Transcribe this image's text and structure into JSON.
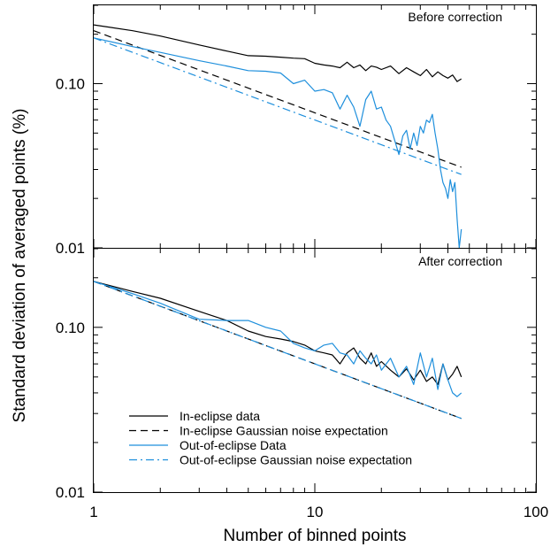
{
  "figure": {
    "xlabel": "Number of binned points",
    "ylabel": "Standard deviation of averaged points (%)"
  },
  "colors": {
    "black": "#000000",
    "blue": "#1e8fdc"
  },
  "chart_data": [
    {
      "type": "line",
      "title": "Before correction",
      "xscale": "log",
      "yscale": "log",
      "xlim": [
        1,
        100
      ],
      "ylim": [
        0.01,
        0.3
      ],
      "xticks": [
        1,
        10,
        100
      ],
      "xtick_labels": [
        "1",
        "10",
        "100"
      ],
      "yticks": [
        0.01,
        0.1
      ],
      "ytick_labels": [
        "0.01",
        "0.10"
      ],
      "series": [
        {
          "name": "In-eclipse data",
          "color": "#000000",
          "dash": "solid",
          "x": [
            1,
            1.5,
            2,
            3,
            4,
            5,
            6,
            7,
            8,
            9,
            10,
            11,
            12,
            13,
            14,
            15,
            16,
            17,
            18,
            19,
            20,
            22,
            24,
            26,
            28,
            30,
            32,
            34,
            36,
            38,
            40,
            42,
            44,
            46
          ],
          "y": [
            0.228,
            0.21,
            0.195,
            0.172,
            0.158,
            0.148,
            0.147,
            0.145,
            0.143,
            0.142,
            0.133,
            0.13,
            0.128,
            0.125,
            0.135,
            0.125,
            0.13,
            0.12,
            0.128,
            0.126,
            0.122,
            0.128,
            0.115,
            0.125,
            0.118,
            0.112,
            0.122,
            0.11,
            0.118,
            0.112,
            0.108,
            0.113,
            0.103,
            0.107
          ]
        },
        {
          "name": "In-eclipse Gaussian noise expectation",
          "color": "#000000",
          "dash": "dashed",
          "x": [
            1,
            46
          ],
          "y": [
            0.21,
            0.031
          ]
        },
        {
          "name": "Out-of-eclipse Data",
          "color": "#1e8fdc",
          "dash": "solid",
          "x": [
            1,
            1.5,
            2,
            3,
            4,
            5,
            6,
            7,
            8,
            9,
            10,
            11,
            12,
            13,
            14,
            15,
            16,
            17,
            18,
            19,
            20,
            21,
            22,
            23,
            24,
            25,
            26,
            27,
            28,
            29,
            30,
            31,
            32,
            33,
            34,
            35,
            36,
            37,
            38,
            39,
            40,
            41,
            42,
            43,
            44,
            45,
            46
          ],
          "y": [
            0.19,
            0.168,
            0.155,
            0.138,
            0.128,
            0.12,
            0.119,
            0.116,
            0.1,
            0.105,
            0.09,
            0.092,
            0.088,
            0.07,
            0.085,
            0.072,
            0.055,
            0.08,
            0.09,
            0.07,
            0.072,
            0.06,
            0.055,
            0.045,
            0.037,
            0.048,
            0.052,
            0.04,
            0.05,
            0.042,
            0.055,
            0.05,
            0.06,
            0.058,
            0.065,
            0.05,
            0.04,
            0.03,
            0.025,
            0.023,
            0.02,
            0.026,
            0.022,
            0.025,
            0.015,
            0.01,
            0.013
          ]
        },
        {
          "name": "Out-of-eclipse Gaussian noise expectation",
          "color": "#1e8fdc",
          "dash": "dashdot",
          "x": [
            1,
            46
          ],
          "y": [
            0.19,
            0.028
          ]
        }
      ]
    },
    {
      "type": "line",
      "title": "After correction",
      "xscale": "log",
      "yscale": "log",
      "xlim": [
        1,
        100
      ],
      "ylim": [
        0.01,
        0.3
      ],
      "xticks": [
        1,
        10,
        100
      ],
      "xtick_labels": [
        "1",
        "10",
        "100"
      ],
      "yticks": [
        0.01,
        0.1
      ],
      "ytick_labels": [
        "0.01",
        "0.10"
      ],
      "legend": {
        "placement": "bottom-left"
      },
      "series": [
        {
          "name": "In-eclipse data",
          "color": "#000000",
          "dash": "solid",
          "x": [
            1,
            1.5,
            2,
            3,
            4,
            5,
            6,
            7,
            8,
            9,
            10,
            11,
            12,
            13,
            14,
            15,
            16,
            17,
            18,
            19,
            20,
            22,
            24,
            26,
            28,
            30,
            32,
            34,
            36,
            38,
            40,
            42,
            44,
            46
          ],
          "y": [
            0.19,
            0.165,
            0.15,
            0.125,
            0.11,
            0.095,
            0.088,
            0.085,
            0.082,
            0.078,
            0.072,
            0.07,
            0.068,
            0.06,
            0.07,
            0.075,
            0.065,
            0.06,
            0.07,
            0.058,
            0.062,
            0.055,
            0.05,
            0.056,
            0.048,
            0.055,
            0.047,
            0.05,
            0.045,
            0.06,
            0.048,
            0.052,
            0.058,
            0.05
          ]
        },
        {
          "name": "In-eclipse Gaussian noise expectation",
          "color": "#000000",
          "dash": "dashed",
          "x": [
            1,
            46
          ],
          "y": [
            0.19,
            0.028
          ]
        },
        {
          "name": "Out-of-eclipse Data",
          "color": "#1e8fdc",
          "dash": "solid",
          "x": [
            1,
            1.5,
            2,
            3,
            4,
            5,
            6,
            7,
            8,
            9,
            10,
            11,
            12,
            13,
            14,
            15,
            16,
            17,
            18,
            19,
            20,
            22,
            24,
            26,
            28,
            30,
            32,
            34,
            36,
            38,
            40,
            42,
            44,
            46
          ],
          "y": [
            0.19,
            0.16,
            0.14,
            0.112,
            0.11,
            0.11,
            0.1,
            0.095,
            0.08,
            0.075,
            0.072,
            0.078,
            0.08,
            0.07,
            0.068,
            0.06,
            0.072,
            0.065,
            0.06,
            0.068,
            0.055,
            0.065,
            0.05,
            0.058,
            0.045,
            0.07,
            0.05,
            0.065,
            0.042,
            0.06,
            0.048,
            0.04,
            0.038,
            0.04
          ]
        },
        {
          "name": "Out-of-eclipse Gaussian noise expectation",
          "color": "#1e8fdc",
          "dash": "dashdot",
          "x": [
            1,
            46
          ],
          "y": [
            0.19,
            0.028
          ]
        }
      ]
    }
  ]
}
